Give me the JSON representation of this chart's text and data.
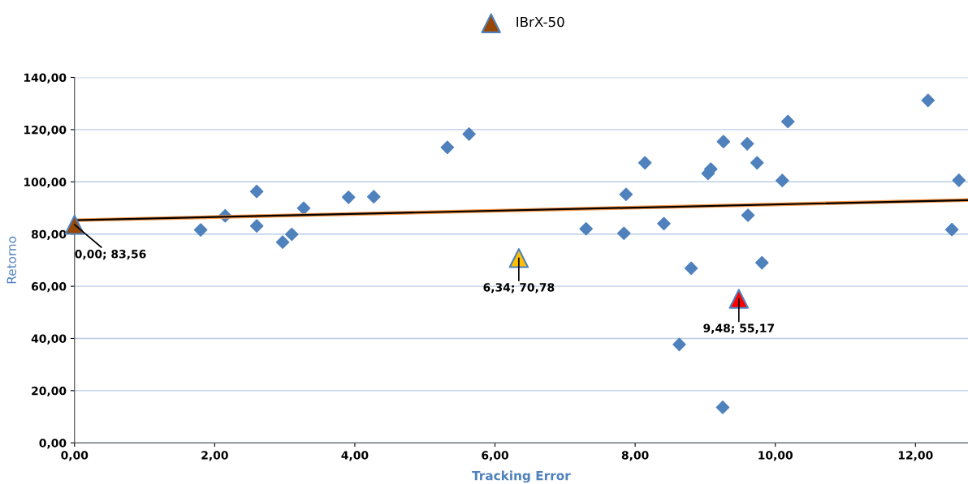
{
  "chart_data": {
    "type": "scatter",
    "xlabel": "Tracking Error",
    "ylabel": "Retorno",
    "xlim": [
      0,
      12.75
    ],
    "xticks": [
      {
        "value": 0,
        "label": "0,00"
      },
      {
        "value": 2,
        "label": "2,00"
      },
      {
        "value": 4,
        "label": "4,00"
      },
      {
        "value": 6,
        "label": "6,00"
      },
      {
        "value": 8,
        "label": "8,00"
      },
      {
        "value": 10,
        "label": "10,00"
      },
      {
        "value": 12,
        "label": "12,00"
      }
    ],
    "ylim": [
      0,
      140
    ],
    "yticks": [
      {
        "value": 0,
        "label": "0,00"
      },
      {
        "value": 20,
        "label": "20,00"
      },
      {
        "value": 40,
        "label": "40,00"
      },
      {
        "value": 60,
        "label": "60,00"
      },
      {
        "value": 80,
        "label": "80,00"
      },
      {
        "value": 100,
        "label": "100,00"
      },
      {
        "value": 120,
        "label": "120,00"
      },
      {
        "value": 140,
        "label": "140,00"
      }
    ],
    "grid": "y",
    "legend": "top",
    "series": [
      {
        "marker": "diamond",
        "color": "#4f81bd",
        "x": [
          1.8,
          2.15,
          2.6,
          2.6,
          2.97,
          3.1,
          3.27,
          3.91,
          4.27,
          5.32,
          5.63,
          7.3,
          7.84,
          7.87,
          8.14,
          8.41,
          8.63,
          8.8,
          9.04,
          9.08,
          9.26,
          9.25,
          9.6,
          9.61,
          9.74,
          9.81,
          10.1,
          10.18,
          12.18,
          12.52,
          12.62
        ],
        "values": [
          81.6,
          87.0,
          96.3,
          83.1,
          76.9,
          79.9,
          89.9,
          94.1,
          94.3,
          113.2,
          118.3,
          82.0,
          80.3,
          95.2,
          107.3,
          84.0,
          37.7,
          66.9,
          103.2,
          104.9,
          115.4,
          13.6,
          114.6,
          87.2,
          107.3,
          69.0,
          100.5,
          123.1,
          131.2,
          81.7,
          100.6
        ]
      },
      {
        "type": "line",
        "marker": "none",
        "color": "#000000",
        "x": [
          0,
          12.75
        ],
        "values": [
          85.3,
          93.0
        ]
      },
      {
        "marker": "triangle",
        "color": "#ff0000",
        "x": [
          9.48
        ],
        "values": [
          55.17
        ]
      },
      {
        "marker": "triangle",
        "color": "#ffc000",
        "x": [
          6.34
        ],
        "values": [
          70.78
        ]
      },
      {
        "marker": "triangle",
        "name": "IBrX-50",
        "color": "#974706",
        "x": [
          0.0
        ],
        "values": [
          83.56
        ]
      }
    ],
    "annotations": [
      {
        "text": "9,48; 55,17",
        "x": 9.48,
        "y": 55.17
      },
      {
        "text": "6,34; 70,78",
        "x": 6.34,
        "y": 70.78
      },
      {
        "text": "0,00; 83,56",
        "x": 0.0,
        "y": 83.56
      }
    ]
  }
}
